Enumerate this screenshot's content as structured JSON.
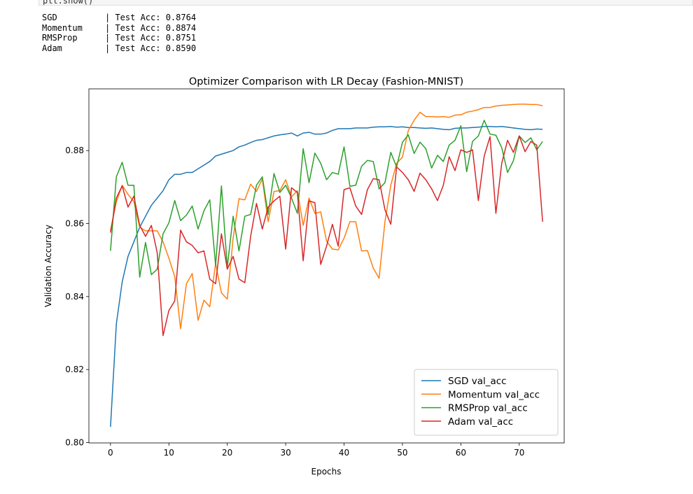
{
  "code": "plt.show()",
  "output": [
    {
      "name": "SGD",
      "text": "| Test Acc: 0.8764"
    },
    {
      "name": "Momentum",
      "text": "| Test Acc: 0.8874"
    },
    {
      "name": "RMSProp",
      "text": "| Test Acc: 0.8751"
    },
    {
      "name": "Adam",
      "text": "| Test Acc: 0.8590"
    }
  ],
  "chart_data": {
    "type": "line",
    "title": "Optimizer Comparison with LR Decay (Fashion-MNIST)",
    "x_label": "Epochs",
    "y_label": "Validation Accuracy",
    "x": [
      0,
      1,
      2,
      3,
      4,
      5,
      6,
      7,
      8,
      9,
      10,
      11,
      12,
      13,
      14,
      15,
      16,
      17,
      18,
      19,
      20,
      21,
      22,
      23,
      24,
      25,
      26,
      27,
      28,
      29,
      30,
      31,
      32,
      33,
      34,
      35,
      36,
      37,
      38,
      39,
      40,
      41,
      42,
      43,
      44,
      45,
      46,
      47,
      48,
      49,
      50,
      51,
      52,
      53,
      54,
      55,
      56,
      57,
      58,
      59,
      60,
      61,
      62,
      63,
      64,
      65,
      66,
      67,
      68,
      69,
      70,
      71,
      72,
      73,
      74
    ],
    "series": [
      {
        "name": "SGD val_acc",
        "color": "#1f77b4",
        "values": [
          0.8043,
          0.8325,
          0.844,
          0.851,
          0.855,
          0.859,
          0.862,
          0.865,
          0.867,
          0.869,
          0.872,
          0.8735,
          0.8735,
          0.874,
          0.874,
          0.875,
          0.876,
          0.877,
          0.8785,
          0.879,
          0.8795,
          0.88,
          0.881,
          0.8815,
          0.8822,
          0.8828,
          0.883,
          0.8835,
          0.884,
          0.8843,
          0.8845,
          0.8848,
          0.884,
          0.8848,
          0.885,
          0.8845,
          0.8845,
          0.8848,
          0.8855,
          0.886,
          0.886,
          0.886,
          0.8862,
          0.8862,
          0.8862,
          0.8864,
          0.8865,
          0.8865,
          0.8866,
          0.8864,
          0.8865,
          0.8863,
          0.8863,
          0.8862,
          0.8861,
          0.8862,
          0.886,
          0.8858,
          0.8857,
          0.8861,
          0.8862,
          0.8862,
          0.8863,
          0.8864,
          0.8866,
          0.8866,
          0.8865,
          0.8866,
          0.8864,
          0.8862,
          0.886,
          0.8858,
          0.8857,
          0.8859,
          0.8858
        ]
      },
      {
        "name": "Momentum val_acc",
        "color": "#ff7f0e",
        "values": [
          0.858,
          0.866,
          0.8705,
          0.868,
          0.866,
          0.859,
          0.858,
          0.858,
          0.858,
          0.855,
          0.8505,
          0.8455,
          0.8312,
          0.8435,
          0.8463,
          0.8335,
          0.839,
          0.8372,
          0.849,
          0.841,
          0.8393,
          0.856,
          0.8668,
          0.8665,
          0.8708,
          0.8688,
          0.8722,
          0.8605,
          0.8688,
          0.869,
          0.872,
          0.8673,
          0.869,
          0.8595,
          0.867,
          0.8628,
          0.8632,
          0.8552,
          0.853,
          0.8528,
          0.856,
          0.8605,
          0.8605,
          0.8525,
          0.8526,
          0.8478,
          0.845,
          0.8605,
          0.8705,
          0.8765,
          0.8782,
          0.8855,
          0.8883,
          0.8905,
          0.8893,
          0.8893,
          0.8892,
          0.8893,
          0.8891,
          0.8897,
          0.8898,
          0.8905,
          0.8908,
          0.8912,
          0.8918,
          0.8918,
          0.8922,
          0.8924,
          0.8925,
          0.8926,
          0.8927,
          0.8927,
          0.8926,
          0.8926,
          0.8923
        ]
      },
      {
        "name": "RMSProp val_acc",
        "color": "#2ca02c",
        "values": [
          0.8525,
          0.8728,
          0.8768,
          0.8705,
          0.8705,
          0.8453,
          0.8548,
          0.846,
          0.8475,
          0.8572,
          0.8602,
          0.8663,
          0.8608,
          0.8623,
          0.8648,
          0.8585,
          0.8635,
          0.8665,
          0.8485,
          0.8703,
          0.848,
          0.862,
          0.8525,
          0.862,
          0.8625,
          0.8705,
          0.8728,
          0.8625,
          0.8737,
          0.8685,
          0.8705,
          0.867,
          0.8628,
          0.8805,
          0.8712,
          0.8793,
          0.8765,
          0.872,
          0.874,
          0.8735,
          0.881,
          0.8702,
          0.8705,
          0.8757,
          0.8773,
          0.877,
          0.8695,
          0.8712,
          0.8795,
          0.8755,
          0.8823,
          0.8843,
          0.8792,
          0.8823,
          0.8805,
          0.8752,
          0.8787,
          0.877,
          0.8815,
          0.8828,
          0.8868,
          0.8742,
          0.8825,
          0.884,
          0.8883,
          0.8845,
          0.8842,
          0.8808,
          0.874,
          0.8772,
          0.884,
          0.8822,
          0.8835,
          0.8802,
          0.8825
        ]
      },
      {
        "name": "Adam val_acc",
        "color": "#d62728",
        "values": [
          0.8575,
          0.867,
          0.8703,
          0.8645,
          0.8675,
          0.8595,
          0.8565,
          0.8595,
          0.852,
          0.8293,
          0.8362,
          0.8388,
          0.8582,
          0.855,
          0.854,
          0.852,
          0.8525,
          0.8448,
          0.8435,
          0.8572,
          0.8475,
          0.851,
          0.8448,
          0.8438,
          0.8565,
          0.8655,
          0.8585,
          0.8645,
          0.8662,
          0.8675,
          0.853,
          0.8698,
          0.8685,
          0.8498,
          0.8662,
          0.8657,
          0.8488,
          0.8538,
          0.8598,
          0.8538,
          0.8693,
          0.8698,
          0.8648,
          0.8625,
          0.8693,
          0.8723,
          0.872,
          0.8638,
          0.8598,
          0.8755,
          0.874,
          0.872,
          0.8688,
          0.8738,
          0.872,
          0.8695,
          0.8663,
          0.8705,
          0.8783,
          0.8745,
          0.8802,
          0.8795,
          0.8802,
          0.8663,
          0.8785,
          0.8838,
          0.8628,
          0.8765,
          0.8828,
          0.8795,
          0.884,
          0.8797,
          0.8825,
          0.8815,
          0.8605
        ]
      }
    ],
    "xlim": [
      -3.7,
      77.7
    ],
    "ylim": [
      0.7999,
      0.8969
    ],
    "xticks": [
      0,
      10,
      20,
      30,
      40,
      50,
      60,
      70
    ],
    "yticks": [
      {
        "value": 0.8,
        "label": "0.80"
      },
      0.82,
      0.84,
      0.86,
      0.88
    ],
    "legend": "lower right",
    "grid": false
  }
}
